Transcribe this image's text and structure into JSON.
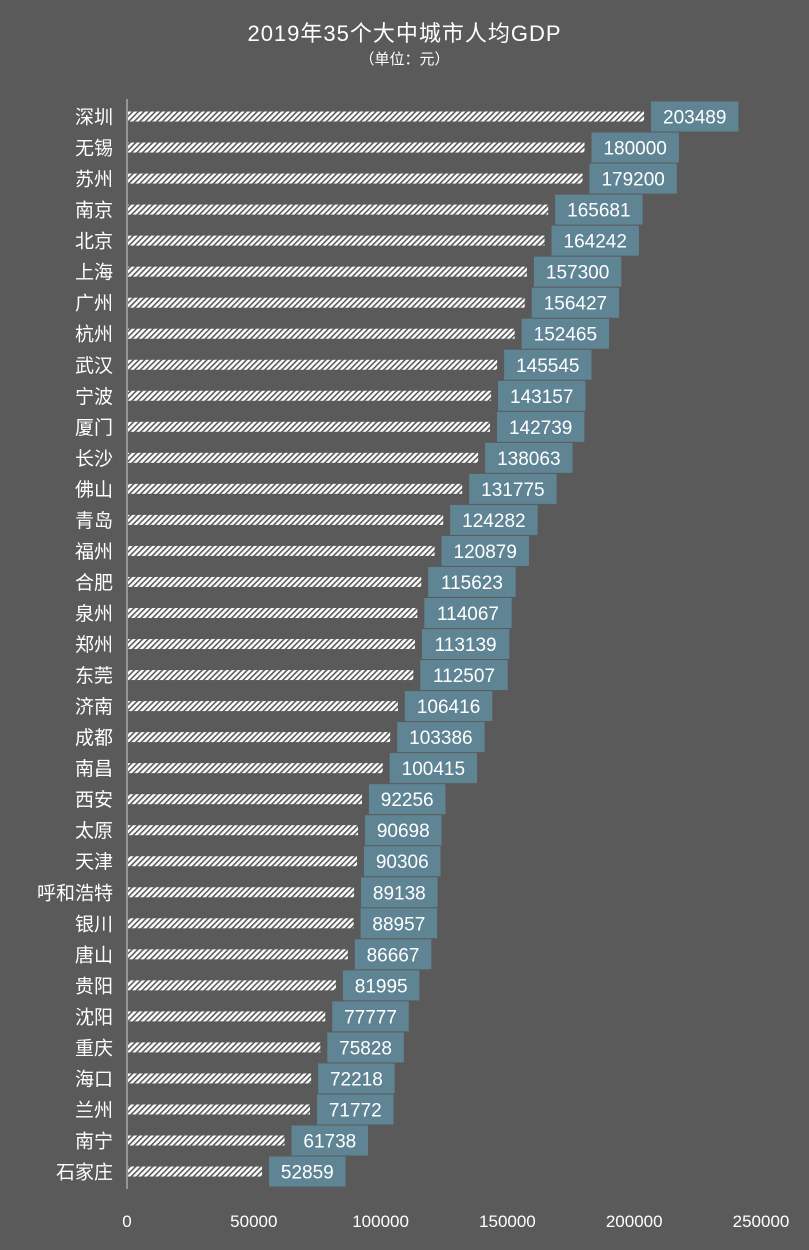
{
  "chart_data": {
    "type": "bar",
    "orientation": "horizontal",
    "title": "2019年35个大中城市人均GDP",
    "subtitle": "（单位：元）",
    "categories": [
      "深圳",
      "无锡",
      "苏州",
      "南京",
      "北京",
      "上海",
      "广州",
      "杭州",
      "武汉",
      "宁波",
      "厦门",
      "长沙",
      "佛山",
      "青岛",
      "福州",
      "合肥",
      "泉州",
      "郑州",
      "东莞",
      "济南",
      "成都",
      "南昌",
      "西安",
      "太原",
      "天津",
      "呼和浩特",
      "银川",
      "唐山",
      "贵阳",
      "沈阳",
      "重庆",
      "海口",
      "兰州",
      "南宁",
      "石家庄"
    ],
    "values": [
      203489,
      180000,
      179200,
      165681,
      164242,
      157300,
      156427,
      152465,
      145545,
      143157,
      142739,
      138063,
      131775,
      124282,
      120879,
      115623,
      114067,
      113139,
      112507,
      106416,
      103386,
      100415,
      92256,
      90698,
      90306,
      89138,
      88957,
      86667,
      81995,
      77777,
      75828,
      72218,
      71772,
      61738,
      52859
    ],
    "xlim": [
      0,
      250000
    ],
    "x_ticks": [
      "0",
      "50000",
      "100000",
      "150000",
      "200000",
      "250000"
    ],
    "grid": false,
    "legend": "none",
    "colors": {
      "background": "#5a5a5a",
      "bar": "#ffffff",
      "bar_hatch": "#5a5a5a",
      "label_box": "#5f8595",
      "text": "#ffffff",
      "axis": "#d0d0d0"
    }
  }
}
